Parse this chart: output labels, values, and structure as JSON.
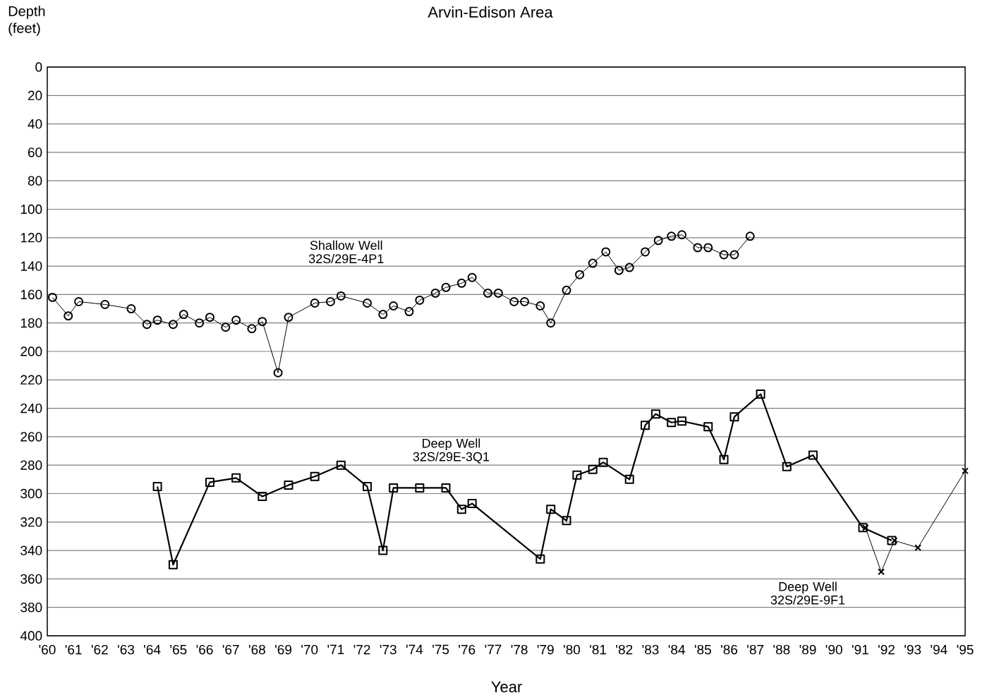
{
  "chart_data": {
    "type": "line",
    "title": "Arvin-Edison Area",
    "xlabel": "Year",
    "ylabel": "Depth (feet)",
    "xlim": [
      1960,
      1995
    ],
    "xticks": [
      {
        "value": 1960,
        "label": "'60"
      },
      {
        "value": 1961,
        "label": "'61"
      },
      {
        "value": 1962,
        "label": "'62"
      },
      {
        "value": 1963,
        "label": "'63"
      },
      {
        "value": 1964,
        "label": "'64"
      },
      {
        "value": 1965,
        "label": "'65"
      },
      {
        "value": 1966,
        "label": "'66"
      },
      {
        "value": 1967,
        "label": "'67"
      },
      {
        "value": 1968,
        "label": "'68"
      },
      {
        "value": 1969,
        "label": "'69"
      },
      {
        "value": 1970,
        "label": "'70"
      },
      {
        "value": 1971,
        "label": "'71"
      },
      {
        "value": 1972,
        "label": "'72"
      },
      {
        "value": 1973,
        "label": "'73"
      },
      {
        "value": 1974,
        "label": "'74"
      },
      {
        "value": 1975,
        "label": "'75"
      },
      {
        "value": 1976,
        "label": "'76"
      },
      {
        "value": 1977,
        "label": "'77"
      },
      {
        "value": 1978,
        "label": "'78"
      },
      {
        "value": 1979,
        "label": "'79"
      },
      {
        "value": 1980,
        "label": "'80"
      },
      {
        "value": 1981,
        "label": "'81"
      },
      {
        "value": 1982,
        "label": "'82"
      },
      {
        "value": 1983,
        "label": "'83"
      },
      {
        "value": 1984,
        "label": "'84"
      },
      {
        "value": 1985,
        "label": "'85"
      },
      {
        "value": 1986,
        "label": "'86"
      },
      {
        "value": 1987,
        "label": "'87"
      },
      {
        "value": 1988,
        "label": "'88"
      },
      {
        "value": 1989,
        "label": "'89"
      },
      {
        "value": 1990,
        "label": "'90"
      },
      {
        "value": 1991,
        "label": "'91"
      },
      {
        "value": 1992,
        "label": "'92"
      },
      {
        "value": 1993,
        "label": "'93"
      },
      {
        "value": 1994,
        "label": "'94"
      },
      {
        "value": 1995,
        "label": "'95"
      }
    ],
    "ylim": [
      400,
      0
    ],
    "yticks": [
      0,
      20,
      40,
      60,
      80,
      100,
      120,
      140,
      160,
      180,
      200,
      220,
      240,
      260,
      280,
      300,
      320,
      340,
      360,
      380,
      400
    ],
    "grid": "y",
    "legend": false,
    "line_style": "solid",
    "series": [
      {
        "name": "Shallow Well 32S/29E-4P1",
        "color": "#000000",
        "marker": "circle",
        "x": [
          1960.2,
          1960.8,
          1961.2,
          1962.2,
          1963.2,
          1963.8,
          1964.2,
          1964.8,
          1965.2,
          1965.8,
          1966.2,
          1966.8,
          1967.2,
          1967.8,
          1968.2,
          1968.8,
          1969.2,
          1970.2,
          1970.8,
          1971.2,
          1972.2,
          1972.8,
          1973.2,
          1973.8,
          1974.2,
          1974.8,
          1975.2,
          1975.8,
          1976.2,
          1976.8,
          1977.2,
          1977.8,
          1978.2,
          1978.8,
          1979.2,
          1979.8,
          1980.3,
          1980.8,
          1981.3,
          1981.8,
          1982.2,
          1982.8,
          1983.3,
          1983.8,
          1984.2,
          1984.8,
          1985.2,
          1985.8,
          1986.2,
          1986.8
        ],
        "values": [
          162,
          175,
          165,
          167,
          170,
          181,
          178,
          181,
          174,
          180,
          176,
          183,
          178,
          184,
          179,
          215,
          176,
          166,
          165,
          161,
          166,
          174,
          168,
          172,
          164,
          159,
          155,
          152,
          148,
          159,
          159,
          165,
          165,
          168,
          180,
          157,
          146,
          138,
          130,
          143,
          141,
          130,
          122,
          119,
          118,
          127,
          127,
          132,
          132,
          119
        ]
      },
      {
        "name": "Deep Well 32S/29E-3Q1",
        "color": "#000000",
        "marker": "square",
        "x": [
          1964.2,
          1964.8,
          1966.2,
          1967.2,
          1968.2,
          1969.2,
          1970.2,
          1971.2,
          1972.2,
          1972.8,
          1973.2,
          1974.2,
          1975.2,
          1975.8,
          1976.2,
          1978.8,
          1979.2,
          1979.8,
          1980.2,
          1980.8,
          1981.2,
          1982.2,
          1982.8,
          1983.2,
          1983.8,
          1984.2,
          1985.2,
          1985.8,
          1986.2,
          1987.2,
          1988.2,
          1989.2,
          1991.1,
          1992.2
        ],
        "values": [
          295,
          350,
          292,
          289,
          302,
          294,
          288,
          280,
          295,
          340,
          296,
          296,
          296,
          311,
          307,
          346,
          311,
          319,
          287,
          283,
          278,
          290,
          252,
          244,
          250,
          249,
          253,
          276,
          246,
          230,
          281,
          273,
          324,
          333
        ]
      },
      {
        "name": "Deep Well 32S/29E-9F1",
        "color": "#000000",
        "marker": "cross",
        "x": [
          1991.2,
          1991.8,
          1992.3,
          1993.2,
          1995.0
        ],
        "values": [
          324,
          355,
          333,
          338,
          284
        ]
      }
    ]
  }
}
